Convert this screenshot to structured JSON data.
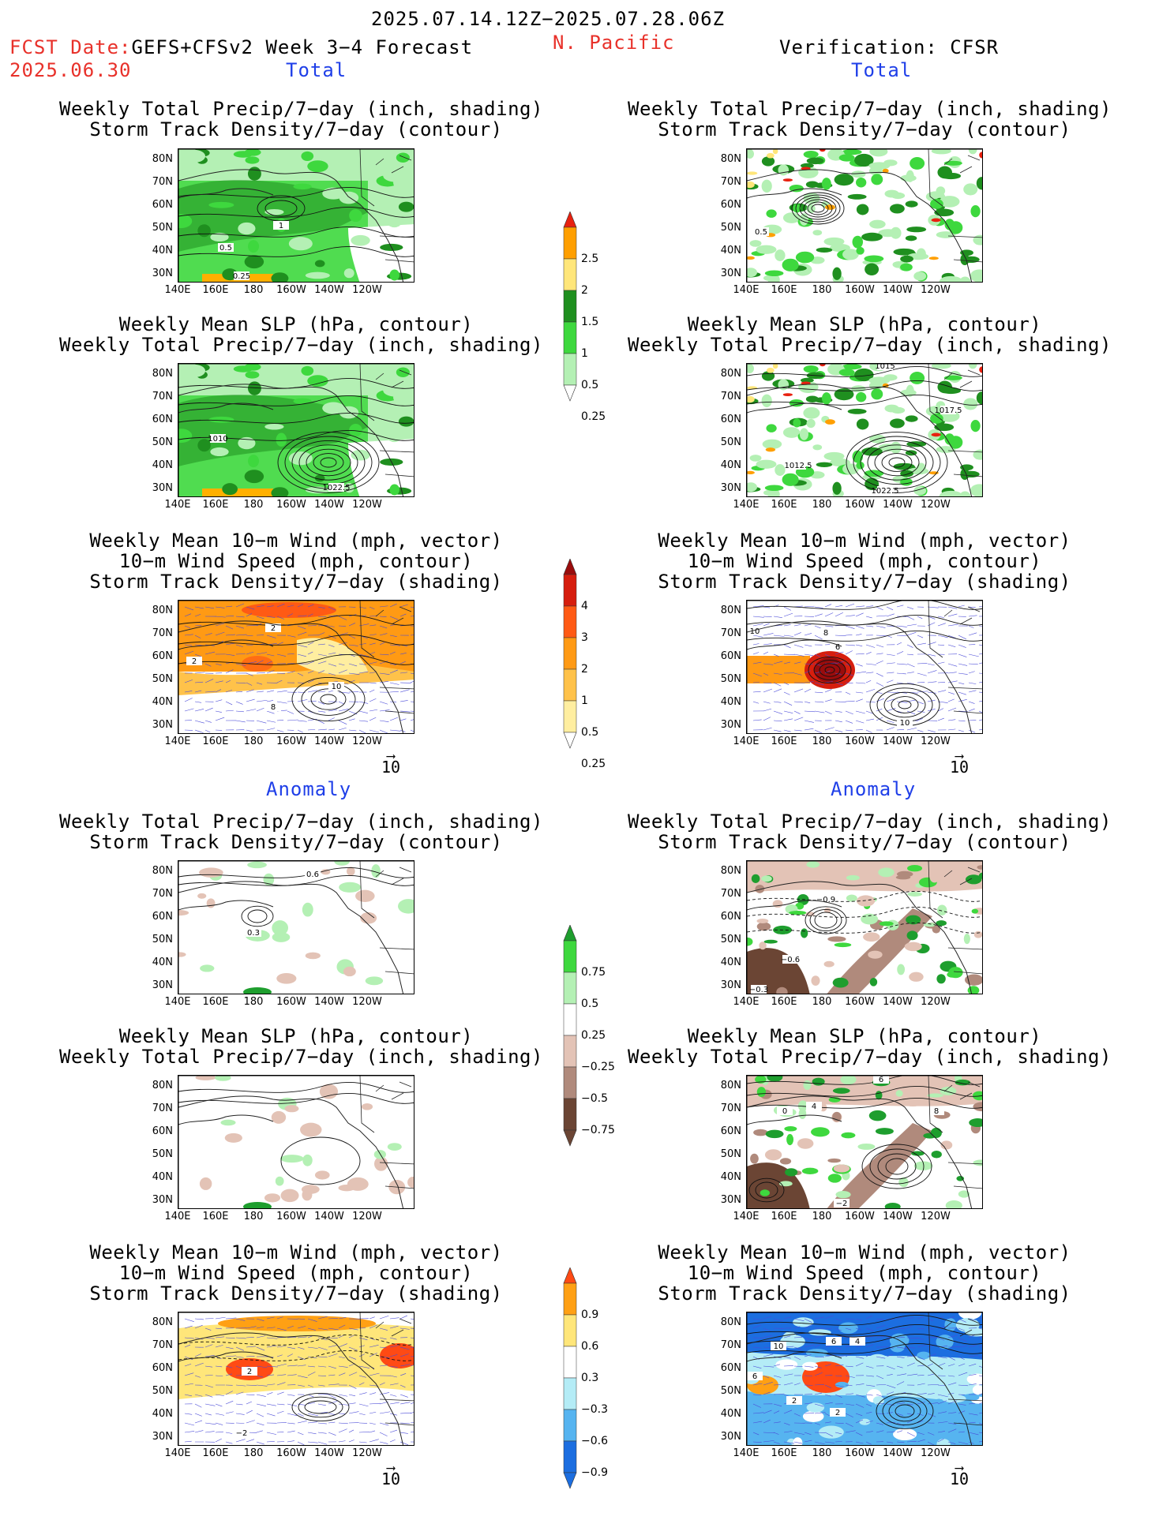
{
  "header": {
    "date_range": "2025.07.14.12Z−2025.07.28.06Z",
    "fcst_label": "FCST Date:",
    "fcst_model": "GEFS+CFSv2 Week 3−4 Forecast",
    "fcst_date": "2025.06.30",
    "region": "N. Pacific",
    "verification": "Verification: CFSR"
  },
  "sections": {
    "total_left": "Total",
    "total_right": "Total",
    "anom_left": "Anomaly",
    "anom_right": "Anomaly"
  },
  "titles": {
    "precip_storm": [
      "Weekly Total Precip/7−day (inch, shading)",
      "Storm Track Density/7−day (contour)"
    ],
    "slp_precip": [
      "Weekly Mean SLP (hPa, contour)",
      "Weekly Total Precip/7−day (inch, shading)"
    ],
    "wind": [
      "Weekly Mean 10−m Wind (mph, vector)",
      "10−m Wind Speed (mph, contour)",
      "Storm Track Density/7−day (shading)"
    ]
  },
  "axes": {
    "lat": [
      "80N",
      "70N",
      "60N",
      "50N",
      "40N",
      "30N"
    ],
    "lon": [
      "140E",
      "160E",
      "180",
      "160W",
      "140W",
      "120W"
    ]
  },
  "vector_ref": "10",
  "colorbars": {
    "precip_total": {
      "labels": [
        "2.5",
        "2",
        "1.5",
        "1",
        "0.5",
        "0.25"
      ],
      "colors": [
        "#e8210f",
        "#ff9f00",
        "#ffe67a",
        "#1f8f1f",
        "#3ed83e",
        "#b4f0b4"
      ]
    },
    "storm_total": {
      "labels": [
        "4",
        "3",
        "2",
        "1",
        "0.5",
        "0.25"
      ],
      "colors": [
        "#9a0c0c",
        "#d61e0e",
        "#ff5a14",
        "#ff9a14",
        "#ffc24a",
        "#ffeea0"
      ]
    },
    "precip_anom": {
      "labels": [
        "0.75",
        "0.5",
        "0.25",
        "−0.25",
        "−0.5",
        "−0.75"
      ],
      "colors": [
        "#1e9e2e",
        "#3ed83e",
        "#b4f0b4",
        "#ffffff",
        "#e3c3b6",
        "#b08a7c",
        "#6b4534"
      ]
    },
    "storm_anom": {
      "labels": [
        "0.9",
        "0.6",
        "0.3",
        "−0.3",
        "−0.6",
        "−0.9"
      ],
      "colors": [
        "#ff4a14",
        "#ffa014",
        "#ffe67a",
        "#ffffff",
        "#b4ecf6",
        "#56b4f0",
        "#1c6ee0"
      ]
    }
  },
  "contour_labels": {
    "p1": [
      "1",
      "0.5",
      "0.25"
    ],
    "p2": [
      "0.5"
    ],
    "p3": [
      "1010",
      "1022.5"
    ],
    "p4": [
      "1015",
      "1017.5",
      "1012.5",
      "1022.5"
    ],
    "p5": [
      "2",
      "2",
      "8",
      "10"
    ],
    "p6": [
      "10",
      "8",
      "6",
      "10"
    ],
    "p7": [
      "0.6",
      "0.3"
    ],
    "p8": [
      "−0.9",
      "−0.6",
      "−0.3"
    ],
    "p10": [
      "6",
      "4",
      "0",
      "−2",
      "8"
    ],
    "p11": [
      "2",
      "−2"
    ],
    "p12": [
      "4",
      "10",
      "6",
      "2",
      "2",
      "6"
    ]
  }
}
